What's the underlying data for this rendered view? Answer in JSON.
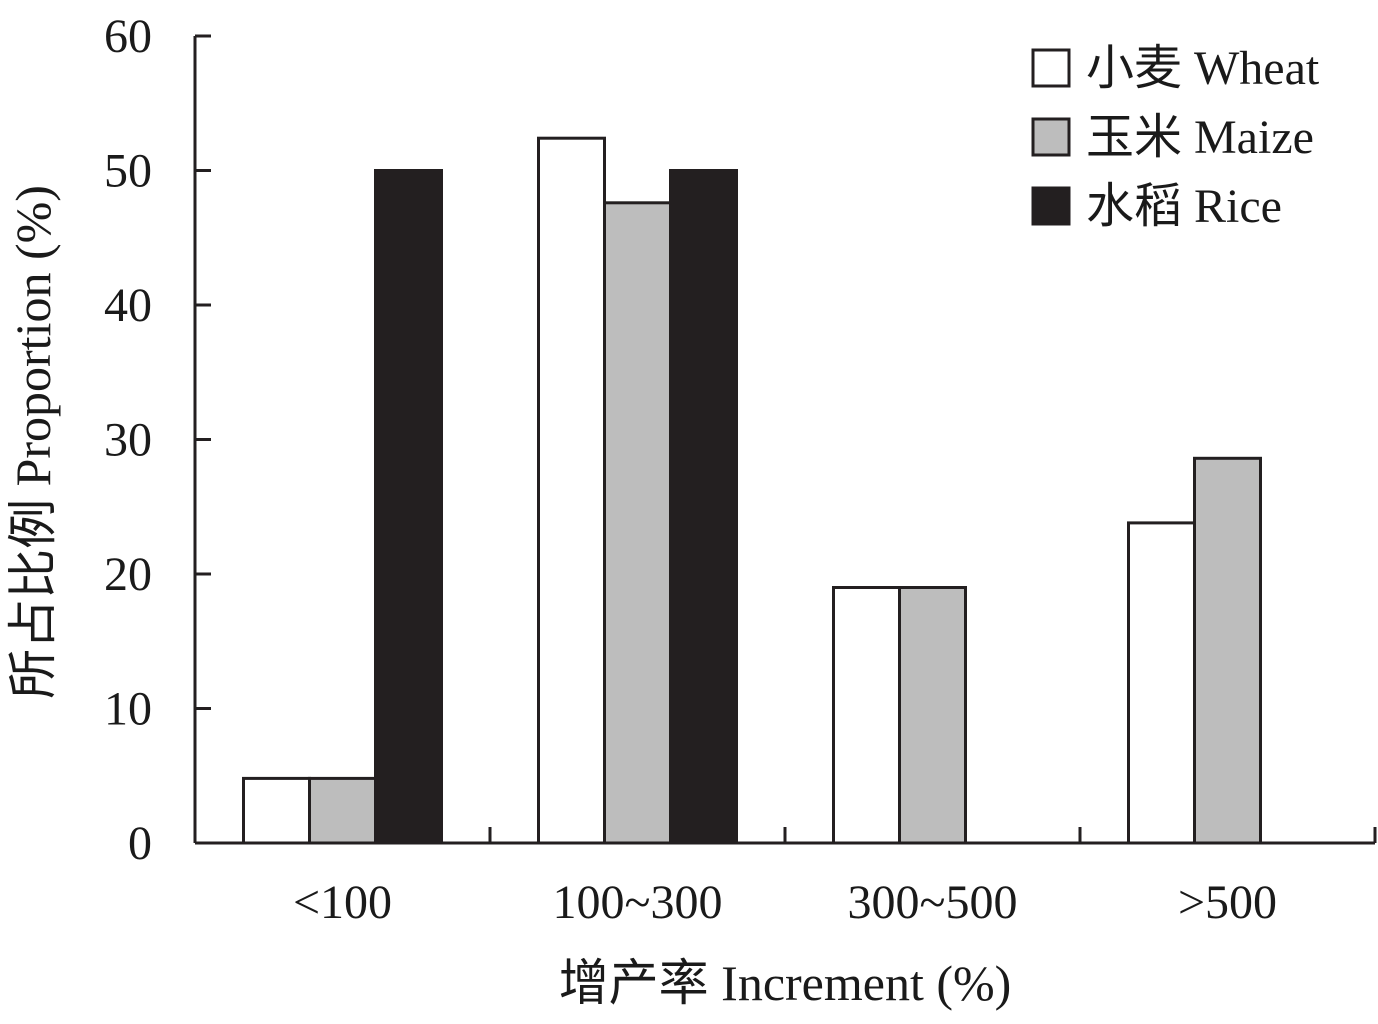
{
  "chart_data": {
    "type": "bar",
    "categories": [
      "<100",
      "100~300",
      "300~500",
      ">500"
    ],
    "series": [
      {
        "name": "小麦 Wheat",
        "color": "#ffffff",
        "values": [
          4.8,
          52.4,
          19.0,
          23.8
        ]
      },
      {
        "name": "玉米 Maize",
        "color": "#bdbdbd",
        "values": [
          4.8,
          47.6,
          19.0,
          28.6
        ]
      },
      {
        "name": "水稻 Rice",
        "color": "#231f20",
        "values": [
          50.0,
          50.0,
          null,
          null
        ]
      }
    ],
    "xlabel": "增产率 Increment (%)",
    "ylabel": "所占比例 Proportion (%)",
    "ylim": [
      0,
      60
    ],
    "yticks": [
      "0",
      "10",
      "20",
      "30",
      "40",
      "50",
      "60"
    ],
    "grid": false,
    "legend_position": "top-right"
  }
}
